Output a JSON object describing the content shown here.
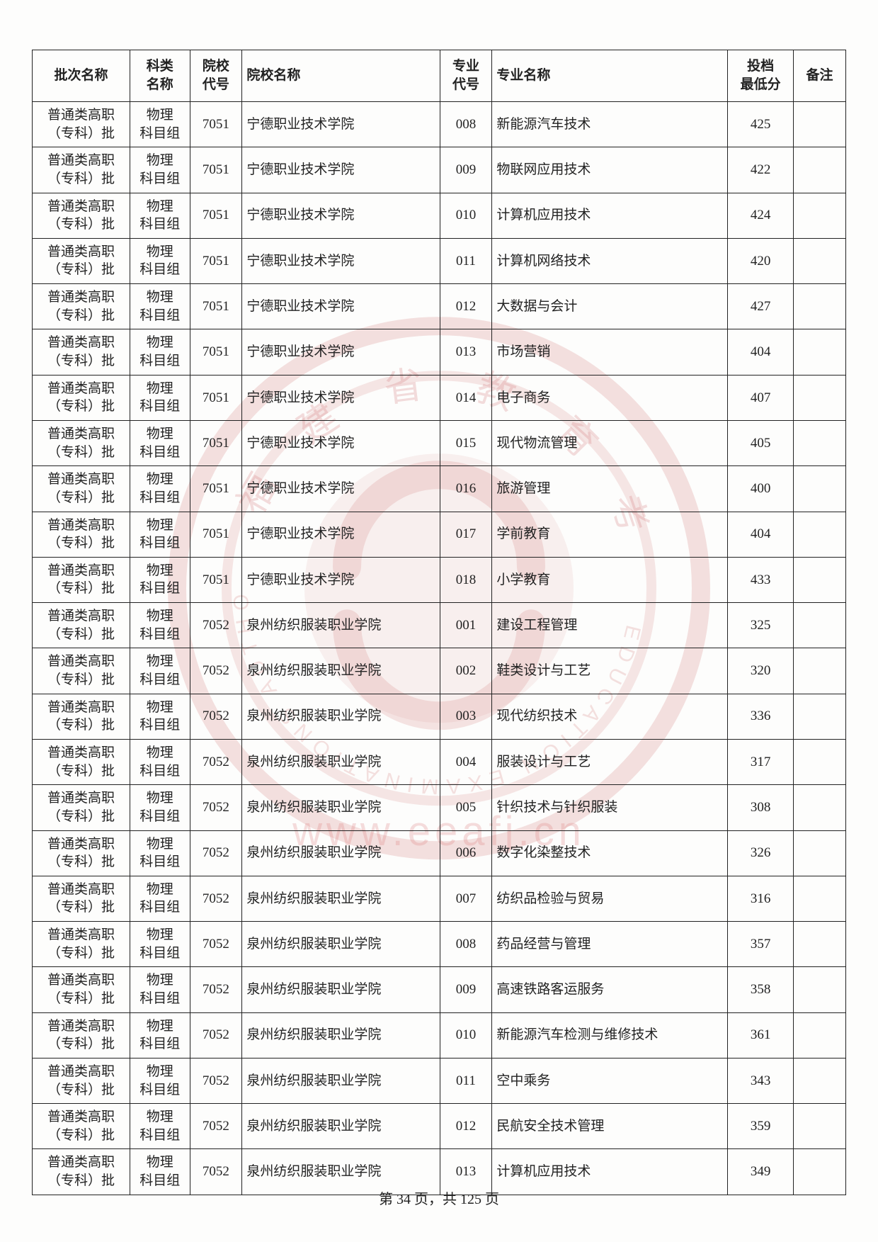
{
  "columns": [
    "批次名称",
    "科类\n名称",
    "院校\n代号",
    "院校名称",
    "专业\n代号",
    "专业名称",
    "投档\n最低分",
    "备注"
  ],
  "column_classes": [
    "c-batch",
    "c-subj",
    "c-scode",
    "c-sname",
    "c-mcode",
    "c-mname",
    "c-score",
    "c-note"
  ],
  "rows": [
    [
      "普通类高职（专科）批",
      "物理\n科目组",
      "7051",
      "宁德职业技术学院",
      "008",
      "新能源汽车技术",
      "425",
      ""
    ],
    [
      "普通类高职（专科）批",
      "物理\n科目组",
      "7051",
      "宁德职业技术学院",
      "009",
      "物联网应用技术",
      "422",
      ""
    ],
    [
      "普通类高职（专科）批",
      "物理\n科目组",
      "7051",
      "宁德职业技术学院",
      "010",
      "计算机应用技术",
      "424",
      ""
    ],
    [
      "普通类高职（专科）批",
      "物理\n科目组",
      "7051",
      "宁德职业技术学院",
      "011",
      "计算机网络技术",
      "420",
      ""
    ],
    [
      "普通类高职（专科）批",
      "物理\n科目组",
      "7051",
      "宁德职业技术学院",
      "012",
      "大数据与会计",
      "427",
      ""
    ],
    [
      "普通类高职（专科）批",
      "物理\n科目组",
      "7051",
      "宁德职业技术学院",
      "013",
      "市场营销",
      "404",
      ""
    ],
    [
      "普通类高职（专科）批",
      "物理\n科目组",
      "7051",
      "宁德职业技术学院",
      "014",
      "电子商务",
      "407",
      ""
    ],
    [
      "普通类高职（专科）批",
      "物理\n科目组",
      "7051",
      "宁德职业技术学院",
      "015",
      "现代物流管理",
      "405",
      ""
    ],
    [
      "普通类高职（专科）批",
      "物理\n科目组",
      "7051",
      "宁德职业技术学院",
      "016",
      "旅游管理",
      "400",
      ""
    ],
    [
      "普通类高职（专科）批",
      "物理\n科目组",
      "7051",
      "宁德职业技术学院",
      "017",
      "学前教育",
      "404",
      ""
    ],
    [
      "普通类高职（专科）批",
      "物理\n科目组",
      "7051",
      "宁德职业技术学院",
      "018",
      "小学教育",
      "433",
      ""
    ],
    [
      "普通类高职（专科）批",
      "物理\n科目组",
      "7052",
      "泉州纺织服装职业学院",
      "001",
      "建设工程管理",
      "325",
      ""
    ],
    [
      "普通类高职（专科）批",
      "物理\n科目组",
      "7052",
      "泉州纺织服装职业学院",
      "002",
      "鞋类设计与工艺",
      "320",
      ""
    ],
    [
      "普通类高职（专科）批",
      "物理\n科目组",
      "7052",
      "泉州纺织服装职业学院",
      "003",
      "现代纺织技术",
      "336",
      ""
    ],
    [
      "普通类高职（专科）批",
      "物理\n科目组",
      "7052",
      "泉州纺织服装职业学院",
      "004",
      "服装设计与工艺",
      "317",
      ""
    ],
    [
      "普通类高职（专科）批",
      "物理\n科目组",
      "7052",
      "泉州纺织服装职业学院",
      "005",
      "针织技术与针织服装",
      "308",
      ""
    ],
    [
      "普通类高职（专科）批",
      "物理\n科目组",
      "7052",
      "泉州纺织服装职业学院",
      "006",
      "数字化染整技术",
      "326",
      ""
    ],
    [
      "普通类高职（专科）批",
      "物理\n科目组",
      "7052",
      "泉州纺织服装职业学院",
      "007",
      "纺织品检验与贸易",
      "316",
      ""
    ],
    [
      "普通类高职（专科）批",
      "物理\n科目组",
      "7052",
      "泉州纺织服装职业学院",
      "008",
      "药品经营与管理",
      "357",
      ""
    ],
    [
      "普通类高职（专科）批",
      "物理\n科目组",
      "7052",
      "泉州纺织服装职业学院",
      "009",
      "高速铁路客运服务",
      "358",
      ""
    ],
    [
      "普通类高职（专科）批",
      "物理\n科目组",
      "7052",
      "泉州纺织服装职业学院",
      "010",
      "新能源汽车检测与维修技术",
      "361",
      ""
    ],
    [
      "普通类高职（专科）批",
      "物理\n科目组",
      "7052",
      "泉州纺织服装职业学院",
      "011",
      "空中乘务",
      "343",
      ""
    ],
    [
      "普通类高职（专科）批",
      "物理\n科目组",
      "7052",
      "泉州纺织服装职业学院",
      "012",
      "民航安全技术管理",
      "359",
      ""
    ],
    [
      "普通类高职（专科）批",
      "物理\n科目组",
      "7052",
      "泉州纺织服装职业学院",
      "013",
      "计算机应用技术",
      "349",
      ""
    ]
  ],
  "footer": {
    "prefix": "第 ",
    "page": "34",
    "mid": " 页，共 ",
    "total": "125",
    "suffix": " 页"
  },
  "watermark_url": "www.eeafj.cn",
  "styling": {
    "page_bg": "#fdfdfc",
    "border_color": "#222",
    "text_color": "#222",
    "seal_color": "rgba(210,120,120,0.22)",
    "font_size_cell": 19,
    "font_size_footer": 20
  }
}
